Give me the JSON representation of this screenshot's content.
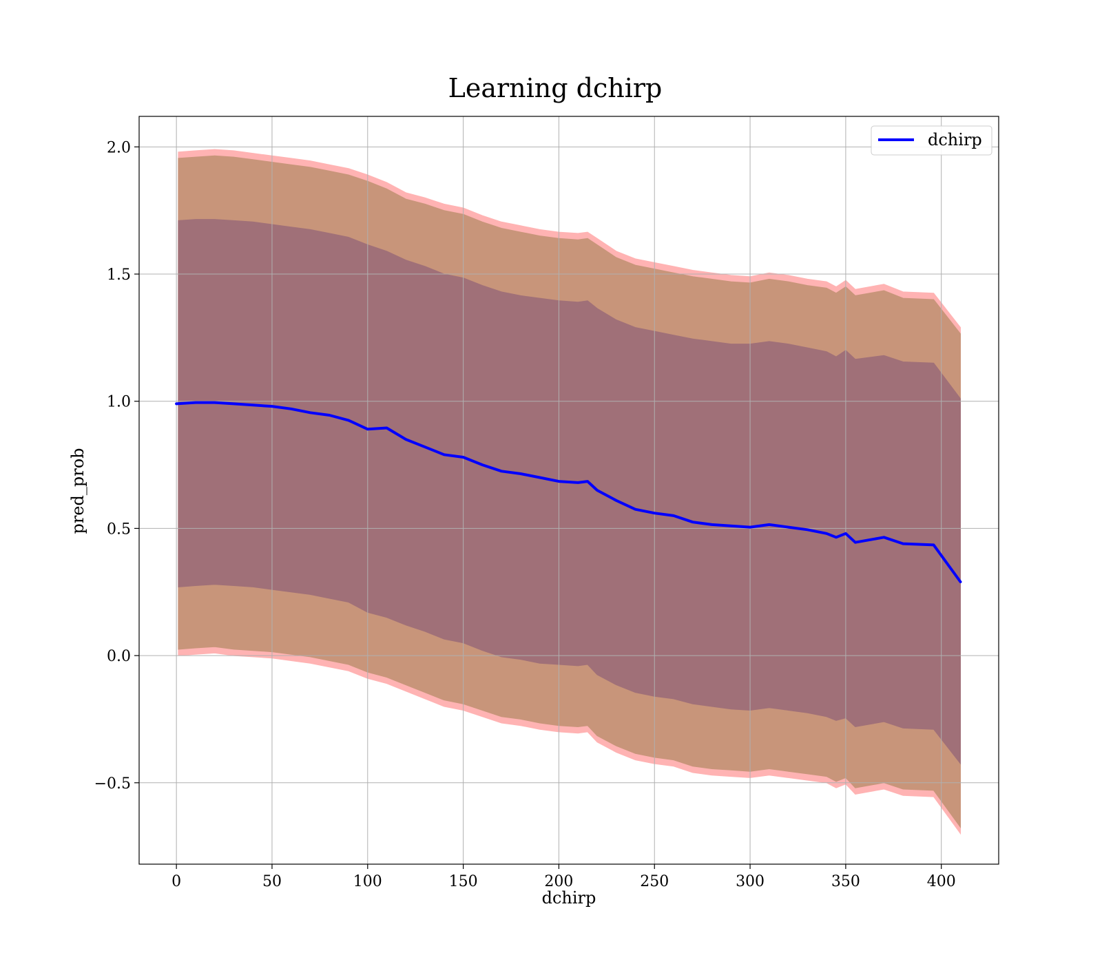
{
  "chart_data": {
    "type": "line",
    "title": "Learning dchirp",
    "xlabel": "dchirp",
    "ylabel": "pred_prob",
    "xlim": [
      -19.5,
      430
    ],
    "ylim": [
      -0.82,
      2.12
    ],
    "xticks": [
      0,
      50,
      100,
      150,
      200,
      250,
      300,
      350,
      400
    ],
    "xtick_labels": [
      "0",
      "50",
      "100",
      "150",
      "200",
      "250",
      "300",
      "350",
      "400"
    ],
    "yticks": [
      -0.5,
      0.0,
      0.5,
      1.0,
      1.5,
      2.0
    ],
    "ytick_labels": [
      "−0.5",
      "0.0",
      "0.5",
      "1.0",
      "1.5",
      "2.0"
    ],
    "grid": true,
    "legend_position": "top-right",
    "colors": {
      "line": "#0000ff",
      "band_outer": "#ffb3b3",
      "band_mid": "#c8957a",
      "band_inner": "#a07078",
      "grid": "#b0b0b0"
    },
    "series": [
      {
        "name": "dchirp",
        "x": [
          0,
          10,
          20,
          30,
          40,
          50,
          60,
          70,
          80,
          90,
          100,
          110,
          120,
          130,
          140,
          150,
          160,
          170,
          180,
          190,
          200,
          210,
          215,
          220,
          230,
          240,
          250,
          260,
          270,
          280,
          290,
          300,
          310,
          320,
          330,
          340,
          345,
          350,
          355,
          370,
          380,
          396,
          410
        ],
        "y": [
          0.99,
          0.995,
          0.995,
          0.99,
          0.985,
          0.98,
          0.97,
          0.955,
          0.945,
          0.925,
          0.89,
          0.895,
          0.85,
          0.82,
          0.79,
          0.78,
          0.75,
          0.725,
          0.715,
          0.7,
          0.685,
          0.68,
          0.685,
          0.65,
          0.61,
          0.575,
          0.56,
          0.55,
          0.525,
          0.515,
          0.51,
          0.505,
          0.515,
          0.505,
          0.495,
          0.48,
          0.465,
          0.48,
          0.445,
          0.465,
          0.44,
          0.435,
          0.29
        ]
      }
    ],
    "bands": [
      {
        "x": [
          1,
          10,
          20,
          30,
          40,
          50,
          60,
          70,
          80,
          90,
          100,
          110,
          120,
          130,
          140,
          150,
          160,
          170,
          180,
          190,
          200,
          210,
          215,
          220,
          230,
          240,
          250,
          260,
          270,
          280,
          290,
          300,
          310,
          320,
          330,
          340,
          345,
          350,
          355,
          370,
          380,
          396,
          410
        ],
        "upper": [
          1.98,
          1.985,
          1.99,
          1.985,
          1.975,
          1.965,
          1.955,
          1.945,
          1.93,
          1.915,
          1.89,
          1.86,
          1.82,
          1.8,
          1.775,
          1.76,
          1.73,
          1.705,
          1.69,
          1.675,
          1.665,
          1.66,
          1.665,
          1.64,
          1.59,
          1.56,
          1.545,
          1.53,
          1.515,
          1.505,
          1.495,
          1.49,
          1.505,
          1.495,
          1.48,
          1.47,
          1.45,
          1.475,
          1.44,
          1.46,
          1.43,
          1.425,
          1.29
        ],
        "lower": [
          0.0,
          0.005,
          0.01,
          0.0,
          -0.005,
          -0.01,
          -0.02,
          -0.03,
          -0.045,
          -0.06,
          -0.09,
          -0.11,
          -0.14,
          -0.17,
          -0.2,
          -0.215,
          -0.24,
          -0.265,
          -0.275,
          -0.29,
          -0.3,
          -0.305,
          -0.3,
          -0.34,
          -0.38,
          -0.41,
          -0.425,
          -0.435,
          -0.46,
          -0.47,
          -0.475,
          -0.48,
          -0.47,
          -0.48,
          -0.49,
          -0.5,
          -0.52,
          -0.505,
          -0.545,
          -0.525,
          -0.55,
          -0.555,
          -0.7
        ]
      },
      {
        "x": [
          1,
          10,
          20,
          30,
          40,
          50,
          60,
          70,
          80,
          90,
          100,
          110,
          120,
          130,
          140,
          150,
          160,
          170,
          180,
          190,
          200,
          210,
          215,
          220,
          230,
          240,
          250,
          260,
          270,
          280,
          290,
          300,
          310,
          320,
          330,
          340,
          345,
          350,
          355,
          370,
          380,
          396,
          410
        ],
        "upper": [
          1.955,
          1.96,
          1.965,
          1.96,
          1.95,
          1.94,
          1.93,
          1.92,
          1.905,
          1.89,
          1.865,
          1.835,
          1.795,
          1.775,
          1.75,
          1.735,
          1.705,
          1.68,
          1.665,
          1.65,
          1.64,
          1.635,
          1.64,
          1.615,
          1.565,
          1.535,
          1.52,
          1.505,
          1.49,
          1.48,
          1.47,
          1.465,
          1.48,
          1.47,
          1.455,
          1.445,
          1.425,
          1.45,
          1.415,
          1.435,
          1.405,
          1.4,
          1.265
        ],
        "lower": [
          0.025,
          0.03,
          0.035,
          0.025,
          0.02,
          0.015,
          0.005,
          -0.005,
          -0.02,
          -0.035,
          -0.065,
          -0.085,
          -0.115,
          -0.145,
          -0.175,
          -0.19,
          -0.215,
          -0.24,
          -0.25,
          -0.265,
          -0.275,
          -0.28,
          -0.275,
          -0.315,
          -0.355,
          -0.385,
          -0.4,
          -0.41,
          -0.435,
          -0.445,
          -0.45,
          -0.455,
          -0.445,
          -0.455,
          -0.465,
          -0.475,
          -0.495,
          -0.48,
          -0.52,
          -0.5,
          -0.525,
          -0.53,
          -0.675
        ]
      },
      {
        "x": [
          1,
          10,
          20,
          30,
          40,
          50,
          60,
          70,
          80,
          90,
          100,
          110,
          120,
          130,
          140,
          150,
          160,
          170,
          180,
          190,
          200,
          210,
          215,
          220,
          230,
          240,
          250,
          260,
          270,
          280,
          290,
          300,
          310,
          320,
          330,
          340,
          345,
          350,
          355,
          370,
          380,
          396,
          410
        ],
        "upper": [
          1.71,
          1.715,
          1.715,
          1.71,
          1.705,
          1.695,
          1.685,
          1.675,
          1.66,
          1.645,
          1.615,
          1.59,
          1.555,
          1.53,
          1.5,
          1.485,
          1.455,
          1.43,
          1.415,
          1.405,
          1.395,
          1.39,
          1.395,
          1.365,
          1.32,
          1.29,
          1.275,
          1.26,
          1.245,
          1.235,
          1.225,
          1.225,
          1.235,
          1.225,
          1.21,
          1.195,
          1.175,
          1.2,
          1.165,
          1.18,
          1.155,
          1.15,
          1.01
        ],
        "lower": [
          0.27,
          0.275,
          0.28,
          0.275,
          0.27,
          0.26,
          0.25,
          0.24,
          0.225,
          0.21,
          0.17,
          0.15,
          0.12,
          0.095,
          0.065,
          0.05,
          0.02,
          -0.005,
          -0.015,
          -0.03,
          -0.035,
          -0.04,
          -0.035,
          -0.075,
          -0.115,
          -0.145,
          -0.16,
          -0.17,
          -0.19,
          -0.2,
          -0.21,
          -0.215,
          -0.205,
          -0.215,
          -0.225,
          -0.24,
          -0.255,
          -0.245,
          -0.28,
          -0.26,
          -0.285,
          -0.29,
          -0.425
        ]
      }
    ]
  }
}
